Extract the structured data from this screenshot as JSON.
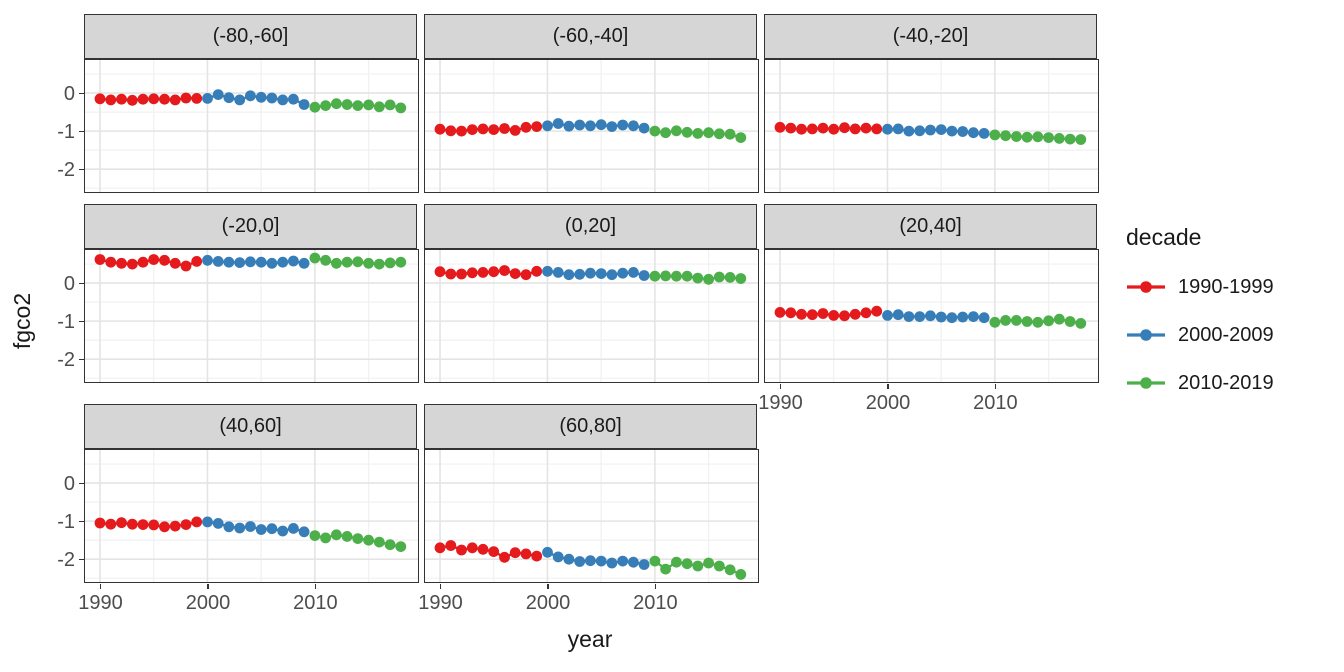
{
  "figure": {
    "x_axis_title": "year",
    "y_axis_title": "fgco2",
    "legend_title": "decade"
  },
  "chart_data": {
    "type": "line",
    "title": "",
    "xlabel": "year",
    "ylabel": "fgco2",
    "facet_variable": "latitude band",
    "legend_title": "decade",
    "legend_position": "right",
    "grid": "major+minor",
    "x_domain": [
      1988.6,
      2019.6
    ],
    "y_domain": [
      -2.6,
      0.87
    ],
    "x_major_ticks": [
      1990,
      2000,
      2010
    ],
    "x_minor_ticks": [
      1995,
      2005,
      2015
    ],
    "x_tick_labels": [
      "1990",
      "2000",
      "2010"
    ],
    "y_major_ticks": [
      0,
      -1,
      -2
    ],
    "y_minor_ticks": [
      0.5,
      -0.5,
      -1.5,
      -2.5
    ],
    "y_tick_labels": [
      "0",
      "-1",
      "-2"
    ],
    "series_defs": [
      {
        "name": "1990-1999",
        "color": "#E41A1C",
        "start_year": 1990
      },
      {
        "name": "2000-2009",
        "color": "#377EB8",
        "start_year": 2000
      },
      {
        "name": "2010-2019",
        "color": "#4DAF4A",
        "start_year": 2010
      }
    ],
    "facets": [
      {
        "label": "(-80,-60]",
        "values": {
          "1990-1999": [
            -0.15,
            -0.18,
            -0.16,
            -0.19,
            -0.16,
            -0.15,
            -0.16,
            -0.18,
            -0.13,
            -0.14
          ],
          "2000-2009": [
            -0.14,
            -0.04,
            -0.12,
            -0.18,
            -0.07,
            -0.11,
            -0.13,
            -0.18,
            -0.16,
            -0.3
          ],
          "2010-2019": [
            -0.37,
            -0.33,
            -0.28,
            -0.3,
            -0.33,
            -0.31,
            -0.36,
            -0.31,
            -0.39
          ]
        }
      },
      {
        "label": "(-60,-40]",
        "values": {
          "1990-1999": [
            -0.95,
            -0.99,
            -1.0,
            -0.96,
            -0.94,
            -0.96,
            -0.93,
            -0.98,
            -0.9,
            -0.88
          ],
          "2000-2009": [
            -0.86,
            -0.8,
            -0.87,
            -0.84,
            -0.86,
            -0.83,
            -0.88,
            -0.84,
            -0.86,
            -0.92
          ],
          "2010-2019": [
            -1.0,
            -1.04,
            -0.99,
            -1.03,
            -1.06,
            -1.04,
            -1.07,
            -1.08,
            -1.17
          ]
        }
      },
      {
        "label": "(-40,-20]",
        "values": {
          "1990-1999": [
            -0.9,
            -0.92,
            -0.95,
            -0.94,
            -0.92,
            -0.95,
            -0.91,
            -0.94,
            -0.92,
            -0.94
          ],
          "2000-2009": [
            -0.95,
            -0.94,
            -1.0,
            -0.99,
            -0.97,
            -0.96,
            -1.0,
            -1.01,
            -1.04,
            -1.06
          ],
          "2010-2019": [
            -1.1,
            -1.12,
            -1.14,
            -1.16,
            -1.15,
            -1.17,
            -1.19,
            -1.21,
            -1.22
          ]
        }
      },
      {
        "label": "(-20,0]",
        "values": {
          "1990-1999": [
            0.62,
            0.55,
            0.52,
            0.5,
            0.55,
            0.62,
            0.6,
            0.52,
            0.45,
            0.57
          ],
          "2000-2009": [
            0.6,
            0.57,
            0.55,
            0.54,
            0.56,
            0.55,
            0.52,
            0.55,
            0.58,
            0.52
          ],
          "2010-2019": [
            0.66,
            0.6,
            0.52,
            0.55,
            0.56,
            0.52,
            0.5,
            0.53,
            0.55
          ]
        }
      },
      {
        "label": "(0,20]",
        "values": {
          "1990-1999": [
            0.3,
            0.24,
            0.24,
            0.27,
            0.28,
            0.3,
            0.33,
            0.25,
            0.22,
            0.31
          ],
          "2000-2009": [
            0.31,
            0.28,
            0.22,
            0.23,
            0.26,
            0.25,
            0.22,
            0.26,
            0.28,
            0.2
          ],
          "2010-2019": [
            0.18,
            0.19,
            0.18,
            0.18,
            0.13,
            0.1,
            0.16,
            0.15,
            0.12
          ]
        }
      },
      {
        "label": "(20,40]",
        "values": {
          "1990-1999": [
            -0.77,
            -0.78,
            -0.82,
            -0.83,
            -0.8,
            -0.85,
            -0.86,
            -0.82,
            -0.78,
            -0.74
          ],
          "2000-2009": [
            -0.85,
            -0.83,
            -0.88,
            -0.88,
            -0.86,
            -0.89,
            -0.91,
            -0.89,
            -0.88,
            -0.91
          ],
          "2010-2019": [
            -1.03,
            -0.98,
            -0.98,
            -1.01,
            -1.03,
            -0.99,
            -0.95,
            -1.01,
            -1.06
          ]
        }
      },
      {
        "label": "(40,60]",
        "values": {
          "1990-1999": [
            -1.05,
            -1.08,
            -1.04,
            -1.08,
            -1.09,
            -1.1,
            -1.15,
            -1.13,
            -1.09,
            -1.02
          ],
          "2000-2009": [
            -1.02,
            -1.06,
            -1.15,
            -1.18,
            -1.14,
            -1.22,
            -1.2,
            -1.26,
            -1.19,
            -1.28
          ],
          "2010-2019": [
            -1.38,
            -1.44,
            -1.36,
            -1.4,
            -1.46,
            -1.5,
            -1.55,
            -1.62,
            -1.67
          ]
        }
      },
      {
        "label": "(60,80]",
        "values": {
          "1990-1999": [
            -1.7,
            -1.64,
            -1.76,
            -1.7,
            -1.74,
            -1.8,
            -1.95,
            -1.83,
            -1.86,
            -1.92
          ],
          "2000-2009": [
            -1.82,
            -1.94,
            -2.0,
            -2.06,
            -2.04,
            -2.05,
            -2.1,
            -2.05,
            -2.08,
            -2.14
          ],
          "2010-2019": [
            -2.05,
            -2.26,
            -2.08,
            -2.12,
            -2.18,
            -2.1,
            -2.18,
            -2.28,
            -2.4
          ]
        }
      }
    ],
    "style": {
      "strip_background": "#d6d6d6",
      "panel_border": "#333333",
      "major_grid": "#e4e4e4",
      "minor_grid": "#f1f1f1",
      "axis_text": "#4d4d4d",
      "title_text": "#1a1a1a"
    }
  }
}
